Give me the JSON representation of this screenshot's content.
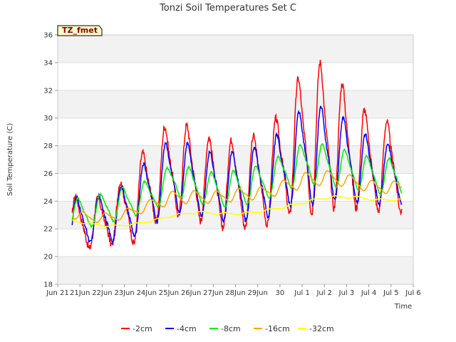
{
  "chart_data": {
    "type": "line",
    "title": "Tonzi Soil Temperatures Set C",
    "xlabel": "Time",
    "ylabel": "Soil Temperature (C)",
    "badge": "TZ_fmet",
    "ylim": [
      18,
      36
    ],
    "yticks": [
      18,
      20,
      22,
      24,
      26,
      28,
      30,
      32,
      34,
      36
    ],
    "xlim": [
      "Jun 20",
      "Jul 6"
    ],
    "xticks": [
      {
        "day": 0,
        "label": "Jun 21"
      },
      {
        "day": 1,
        "label": "21Jun"
      },
      {
        "day": 2,
        "label": "22Jun"
      },
      {
        "day": 3,
        "label": "23Jun"
      },
      {
        "day": 4,
        "label": "24Jun"
      },
      {
        "day": 5,
        "label": "25Jun"
      },
      {
        "day": 6,
        "label": "26Jun"
      },
      {
        "day": 7,
        "label": "27Jun"
      },
      {
        "day": 8,
        "label": "28Jun"
      },
      {
        "day": 9,
        "label": "29Jun"
      },
      {
        "day": 10,
        "label": "30"
      },
      {
        "day": 11,
        "label": "Jul 1"
      },
      {
        "day": 12,
        "label": "Jul 2"
      },
      {
        "day": 13,
        "label": "Jul 3"
      },
      {
        "day": 14,
        "label": "Jul 4"
      },
      {
        "day": 15,
        "label": "Jul 5"
      },
      {
        "day": 16,
        "label": "Jul 6"
      }
    ],
    "grid": true,
    "legend_position": "bottom",
    "x_start_day": 0.65,
    "x_end_day": 15.5,
    "series": [
      {
        "name": "-2cm",
        "color": "#ff0000",
        "mean": [
          22.5,
          22.3,
          22.6,
          23.5,
          25.5,
          26.5,
          25.8,
          25.2,
          25.3,
          25.5,
          27,
          28.8,
          28.5,
          27.5,
          26.5
        ],
        "amp": [
          4.5,
          3.5,
          3.5,
          5.5,
          6.3,
          7.1,
          6.3,
          6.2,
          6.4,
          6.7,
          8,
          11.5,
          10,
          8,
          6.5
        ],
        "phase": 0.62,
        "noise": 0.55
      },
      {
        "name": "-4cm",
        "color": "#0000ff",
        "mean": [
          22.5,
          22.6,
          22.8,
          23.4,
          25,
          25.9,
          25.4,
          25.0,
          25.1,
          25.4,
          26.5,
          27.5,
          27.3,
          26.8,
          26
        ],
        "amp": [
          3.5,
          3.2,
          3.5,
          4.3,
          5.2,
          5.6,
          4.8,
          4.8,
          5.1,
          5.4,
          5.7,
          7.7,
          6.3,
          5.8,
          4.3
        ],
        "phase": 0.66,
        "noise": 0.3
      },
      {
        "name": "-8cm",
        "color": "#00ee00",
        "mean": [
          23.3,
          23.1,
          23.6,
          24,
          24.5,
          25.6,
          25.0,
          24.8,
          25,
          25.4,
          26.2,
          26.8,
          26.5,
          26.2,
          25.8
        ],
        "amp": [
          2.2,
          2.0,
          2.3,
          2.3,
          2.2,
          2.6,
          2.3,
          2.5,
          2.6,
          2.6,
          2.7,
          3.1,
          2.9,
          2.7,
          2.6
        ],
        "phase": 0.72,
        "noise": 0.12
      },
      {
        "name": "-16cm",
        "color": "#ffa500",
        "mean": [
          23.3,
          22.8,
          22.8,
          23.2,
          23.8,
          24.3,
          24.3,
          24.3,
          24.5,
          24.6,
          25.1,
          25.6,
          25.7,
          25.4,
          25.0
        ],
        "amp": [
          0.7,
          0.7,
          0.7,
          0.7,
          0.8,
          1.0,
          0.9,
          0.9,
          0.9,
          0.9,
          1.0,
          1.1,
          1.0,
          0.9,
          0.9
        ],
        "phase": 0.95,
        "noise": 0.04
      },
      {
        "name": "-32cm",
        "color": "#ffff00",
        "mean": [
          22.7,
          22.4,
          22.2,
          22.3,
          22.6,
          23.0,
          23.2,
          23.1,
          23.1,
          23.3,
          23.6,
          24.0,
          24.3,
          24.3,
          24.1
        ],
        "amp": [
          0.12,
          0.12,
          0.12,
          0.12,
          0.15,
          0.15,
          0.15,
          0.15,
          0.15,
          0.15,
          0.18,
          0.18,
          0.18,
          0.18,
          0.15
        ],
        "phase": 0.3,
        "noise": 0.02
      }
    ]
  }
}
